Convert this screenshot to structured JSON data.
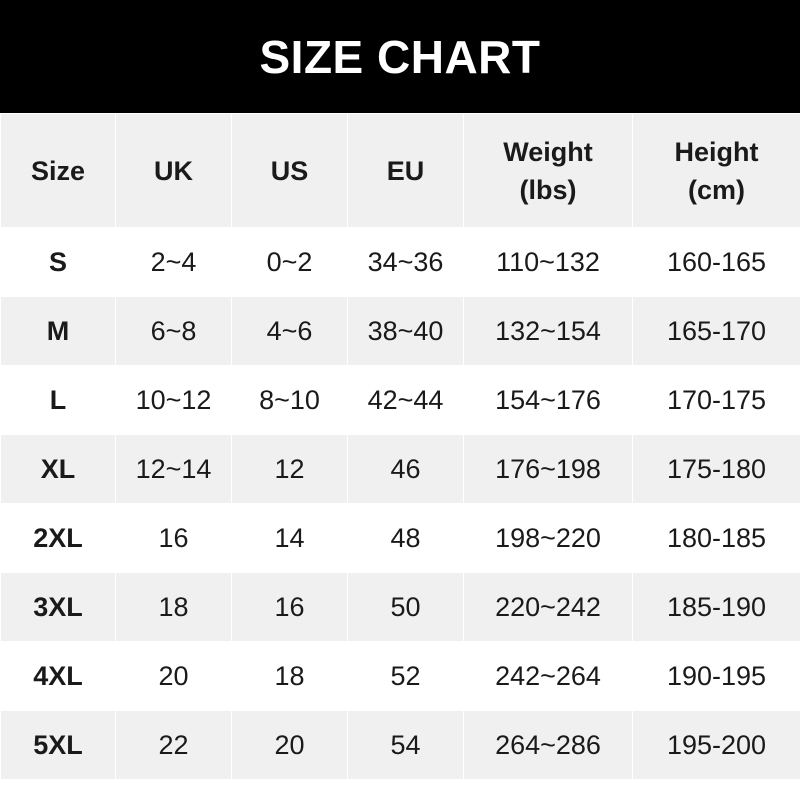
{
  "title": "SIZE CHART",
  "headers": [
    [
      "Size"
    ],
    [
      "UK"
    ],
    [
      "US"
    ],
    [
      "EU"
    ],
    [
      "Weight",
      "(lbs)"
    ],
    [
      "Height",
      "(cm)"
    ]
  ],
  "rows": [
    [
      "S",
      "2~4",
      "0~2",
      "34~36",
      "110~132",
      "160-165"
    ],
    [
      "M",
      "6~8",
      "4~6",
      "38~40",
      "132~154",
      "165-170"
    ],
    [
      "L",
      "10~12",
      "8~10",
      "42~44",
      "154~176",
      "170-175"
    ],
    [
      "XL",
      "12~14",
      "12",
      "46",
      "176~198",
      "175-180"
    ],
    [
      "2XL",
      "16",
      "14",
      "48",
      "198~220",
      "180-185"
    ],
    [
      "3XL",
      "18",
      "16",
      "50",
      "220~242",
      "185-190"
    ],
    [
      "4XL",
      "20",
      "18",
      "52",
      "242~264",
      "190-195"
    ],
    [
      "5XL",
      "22",
      "20",
      "54",
      "264~286",
      "195-200"
    ]
  ],
  "colors": {
    "title_bg": "#000000",
    "stripe": "#f0f0f0",
    "text": "#1a1a1a"
  }
}
